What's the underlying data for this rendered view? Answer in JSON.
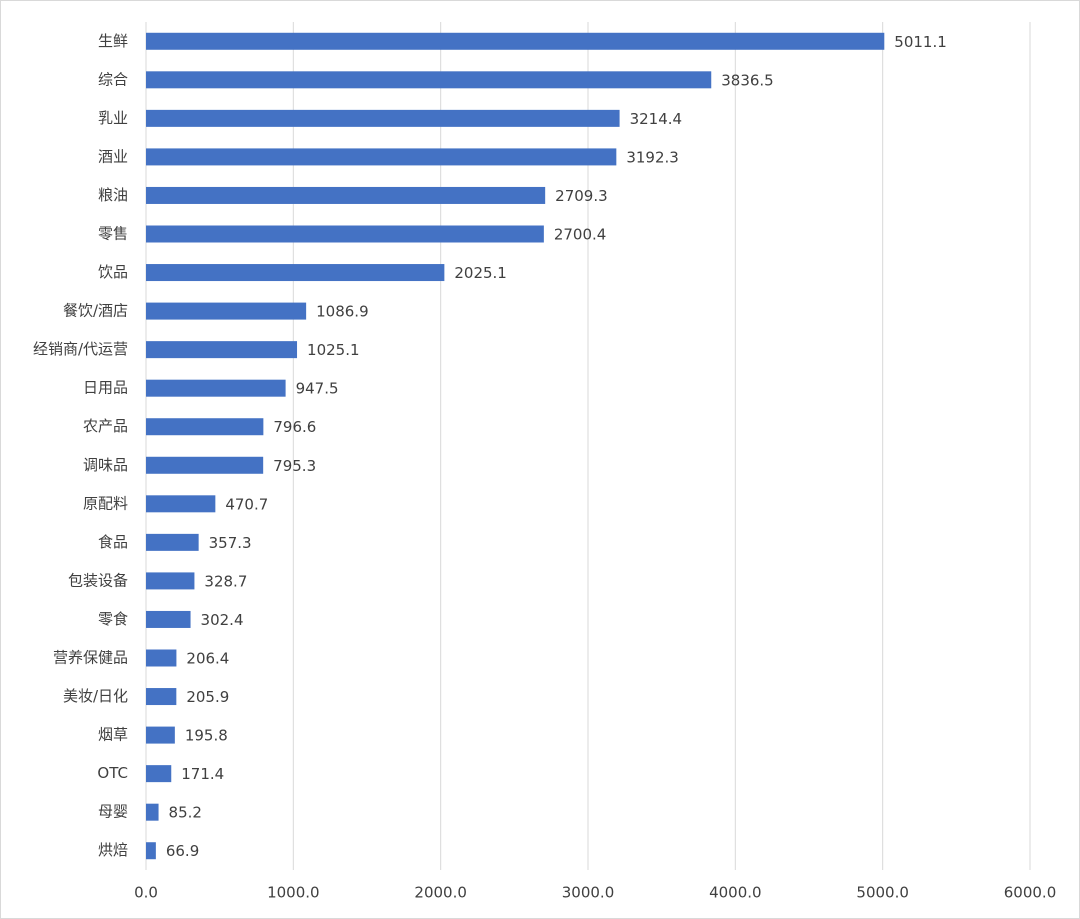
{
  "chart_data": {
    "type": "bar",
    "orientation": "horizontal",
    "categories": [
      "生鲜",
      "综合",
      "乳业",
      "酒业",
      "粮油",
      "零售",
      "饮品",
      "餐饮/酒店",
      "经销商/代运营",
      "日用品",
      "农产品",
      "调味品",
      "原配料",
      "食品",
      "包装设备",
      "零食",
      "营养保健品",
      "美妆/日化",
      "烟草",
      "OTC",
      "母婴",
      "烘焙"
    ],
    "values": [
      5011.1,
      3836.5,
      3214.4,
      3192.3,
      2709.3,
      2700.4,
      2025.1,
      1086.9,
      1025.1,
      947.5,
      796.6,
      795.3,
      470.7,
      357.3,
      328.7,
      302.4,
      206.4,
      205.9,
      195.8,
      171.4,
      85.2,
      66.9
    ],
    "color": "#4472c4",
    "xlim": [
      0,
      6000
    ],
    "xticks": [
      {
        "value": 0,
        "label": "0.0"
      },
      {
        "value": 1000,
        "label": "1000.0"
      },
      {
        "value": 2000,
        "label": "2000.0"
      },
      {
        "value": 3000,
        "label": "3000.0"
      },
      {
        "value": 4000,
        "label": "4000.0"
      },
      {
        "value": 5000,
        "label": "5000.0"
      },
      {
        "value": 6000,
        "label": "6000.0"
      }
    ],
    "grid": true
  }
}
